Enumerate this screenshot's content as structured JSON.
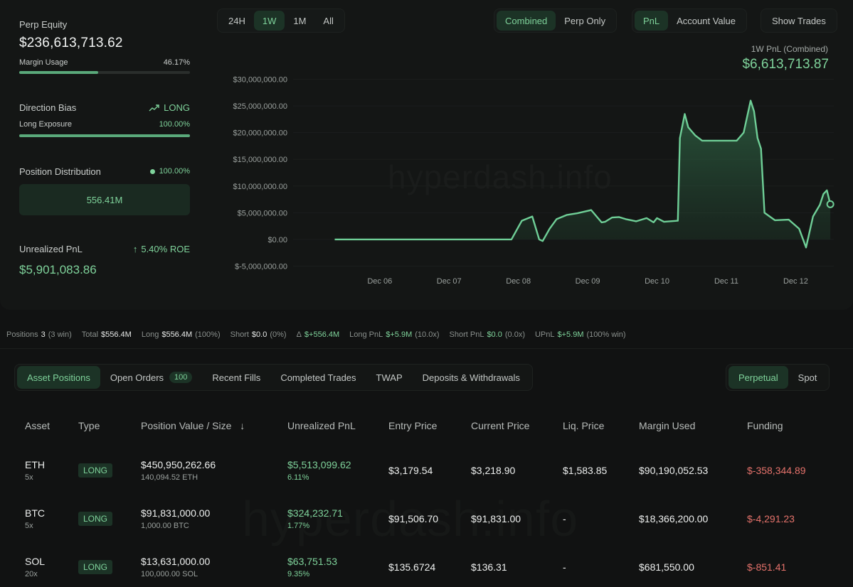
{
  "summary": {
    "perp_equity_label": "Perp Equity",
    "perp_equity_value": "$236,613,713.62",
    "margin_usage_label": "Margin Usage",
    "margin_usage_value": "46.17%",
    "margin_usage_fraction": 0.4617,
    "direction_bias_label": "Direction Bias",
    "direction_bias_value": "LONG",
    "long_exposure_label": "Long Exposure",
    "long_exposure_value": "100.00%",
    "long_exposure_fraction": 1.0,
    "position_distribution_label": "Position Distribution",
    "position_distribution_value": "100.00%",
    "position_distribution_amount": "556.41M",
    "unrealized_pnl_label": "Unrealized PnL",
    "roe_value": "5.40% ROE",
    "unrealized_pnl_value": "$5,901,083.86"
  },
  "timeframes": [
    "24H",
    "1W",
    "1M",
    "All"
  ],
  "timeframe_active": "1W",
  "mode_toggle": [
    "Combined",
    "Perp Only"
  ],
  "metric_toggle": [
    "PnL",
    "Account Value"
  ],
  "show_trades_label": "Show Trades",
  "pnl_caption": "1W PnL (Combined)",
  "pnl_value": "$6,613,713.87",
  "watermark": "hyperdash.info",
  "chart_data": {
    "type": "area",
    "x": [
      0,
      0.5,
      1,
      1.5,
      2,
      2.5,
      2.55,
      2.7,
      2.85,
      2.95,
      3.0,
      3.1,
      3.2,
      3.35,
      3.5,
      3.7,
      3.85,
      3.9,
      4.0,
      4.1,
      4.2,
      4.35,
      4.5,
      4.6,
      4.65,
      4.75,
      4.95,
      4.98,
      5.05,
      5.1,
      5.2,
      5.3,
      5.4,
      5.6,
      5.8,
      5.9,
      6.0,
      6.05,
      6.1,
      6.15,
      6.2,
      6.35,
      6.55,
      6.7,
      6.8,
      6.9,
      7.0,
      7.05,
      7.1,
      7.15
    ],
    "y": [
      0,
      0,
      0,
      0,
      0,
      0,
      0,
      3500000,
      4300000,
      0,
      -300000,
      2000000,
      3800000,
      4600000,
      4900000,
      5500000,
      3200000,
      3300000,
      4100000,
      4200000,
      3800000,
      3400000,
      4000000,
      3200000,
      4000000,
      3300000,
      3500000,
      19000000,
      23500000,
      21000000,
      19500000,
      18500000,
      18500000,
      18500000,
      18500000,
      20000000,
      26000000,
      24000000,
      19000000,
      17000000,
      5000000,
      3600000,
      3700000,
      2000000,
      -1500000,
      4300000,
      6500000,
      8500000,
      9200000,
      6600000
    ],
    "xtick_labels": [
      "Dec 06",
      "Dec 07",
      "Dec 08",
      "Dec 09",
      "Dec 10",
      "Dec 11",
      "Dec 12"
    ],
    "xtick_positions": [
      0.65,
      1.65,
      2.65,
      3.65,
      4.65,
      5.65,
      6.65
    ],
    "ytick_labels": [
      "$30,000,000.00",
      "$25,000,000.00",
      "$20,000,000.00",
      "$15,000,000.00",
      "$10,000,000.00",
      "$5,000,000.00",
      "$0.00",
      "$-5,000,000.00"
    ],
    "ytick_values": [
      30000000,
      25000000,
      20000000,
      15000000,
      10000000,
      5000000,
      0,
      -5000000
    ],
    "xlim": [
      -0.6,
      7.2
    ],
    "ylim": [
      -6000000,
      31000000
    ],
    "line_color": "#6fcf97"
  },
  "stats": {
    "positions_label": "Positions",
    "positions_value": "3",
    "positions_extra": "(3 win)",
    "total_label": "Total",
    "total_value": "$556.4M",
    "long_label": "Long",
    "long_value": "$556.4M",
    "long_extra": "(100%)",
    "short_label": "Short",
    "short_value": "$0.0",
    "short_extra": "(0%)",
    "delta_label": "Δ",
    "delta_value": "$+556.4M",
    "long_pnl_label": "Long PnL",
    "long_pnl_value": "$+5.9M",
    "long_pnl_extra": "(10.0x)",
    "short_pnl_label": "Short PnL",
    "short_pnl_value": "$0.0",
    "short_pnl_extra": "(0.0x)",
    "upnl_label": "UPnL",
    "upnl_value": "$+5.9M",
    "upnl_extra": "(100% win)"
  },
  "tabs": {
    "asset_positions": "Asset Positions",
    "open_orders": "Open Orders",
    "open_orders_count": "100",
    "recent_fills": "Recent Fills",
    "completed_trades": "Completed Trades",
    "twap": "TWAP",
    "deposits": "Deposits & Withdrawals",
    "perpetual": "Perpetual",
    "spot": "Spot"
  },
  "table": {
    "headers": [
      "Asset",
      "Type",
      "Position Value / Size",
      "Unrealized PnL",
      "Entry Price",
      "Current Price",
      "Liq. Price",
      "Margin Used",
      "Funding"
    ],
    "rows": [
      {
        "asset": "ETH",
        "lev": "5x",
        "type": "LONG",
        "value": "$450,950,262.66",
        "size": "140,094.52 ETH",
        "pnl": "$5,513,099.62",
        "pnl_pct": "6.11%",
        "entry": "$3,179.54",
        "current": "$3,218.90",
        "liq": "$1,583.85",
        "margin": "$90,190,052.53",
        "funding": "$-358,344.89"
      },
      {
        "asset": "BTC",
        "lev": "5x",
        "type": "LONG",
        "value": "$91,831,000.00",
        "size": "1,000.00 BTC",
        "pnl": "$324,232.71",
        "pnl_pct": "1.77%",
        "entry": "$91,506.70",
        "current": "$91,831.00",
        "liq": "-",
        "margin": "$18,366,200.00",
        "funding": "$-4,291.23"
      },
      {
        "asset": "SOL",
        "lev": "20x",
        "type": "LONG",
        "value": "$13,631,000.00",
        "size": "100,000.00 SOL",
        "pnl": "$63,751.53",
        "pnl_pct": "9.35%",
        "entry": "$135.6724",
        "current": "$136.31",
        "liq": "-",
        "margin": "$681,550.00",
        "funding": "$-851.41"
      }
    ]
  }
}
